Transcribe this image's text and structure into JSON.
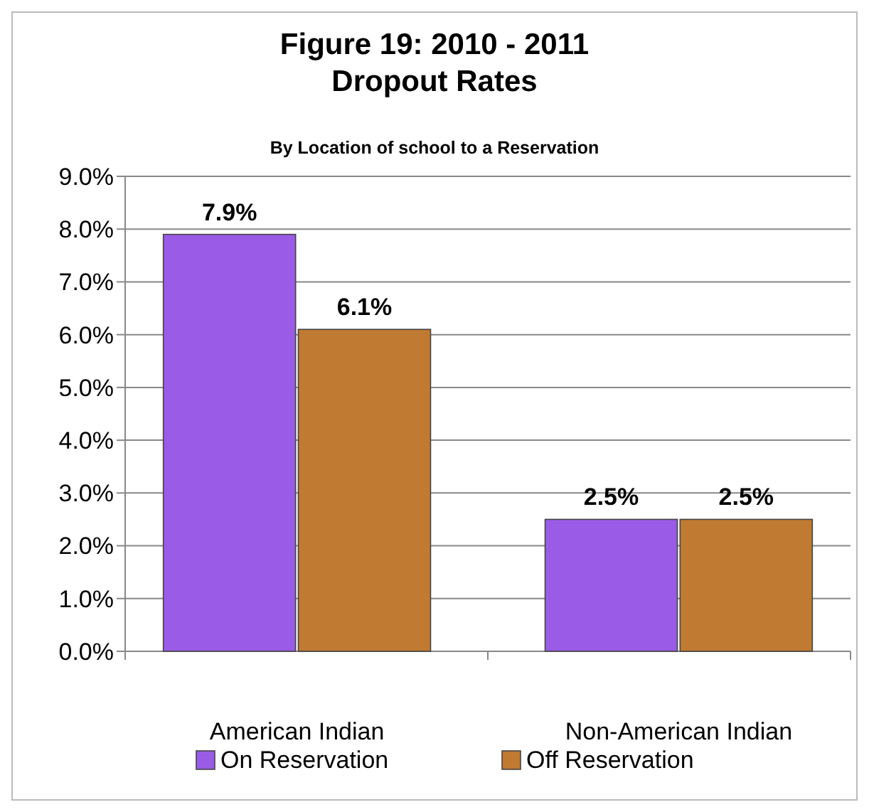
{
  "chart_data": {
    "type": "bar",
    "title": "Figure 19:  2010 - 2011\nDropout Rates",
    "subtitle": "By Location of school to a Reservation",
    "categories": [
      "American Indian",
      "Non-American Indian"
    ],
    "series": [
      {
        "name": "On Reservation",
        "color": "#9a5ce6",
        "values": [
          7.9,
          2.5
        ],
        "value_labels": [
          "7.9%",
          "2.5%"
        ]
      },
      {
        "name": "Off Reservation",
        "color": "#c07a32",
        "values": [
          6.1,
          2.5
        ],
        "value_labels": [
          "6.1%",
          "2.5%"
        ]
      }
    ],
    "ylim": [
      0,
      9
    ],
    "yticks": [
      {
        "value": 0,
        "label": "0.0%"
      },
      {
        "value": 1,
        "label": "1.0%"
      },
      {
        "value": 2,
        "label": "2.0%"
      },
      {
        "value": 3,
        "label": "3.0%"
      },
      {
        "value": 4,
        "label": "4.0%"
      },
      {
        "value": 5,
        "label": "5.0%"
      },
      {
        "value": 6,
        "label": "6.0%"
      },
      {
        "value": 7,
        "label": "7.0%"
      },
      {
        "value": 8,
        "label": "8.0%"
      },
      {
        "value": 9,
        "label": "9.0%"
      }
    ],
    "grid": "y",
    "legend": "bottom"
  }
}
